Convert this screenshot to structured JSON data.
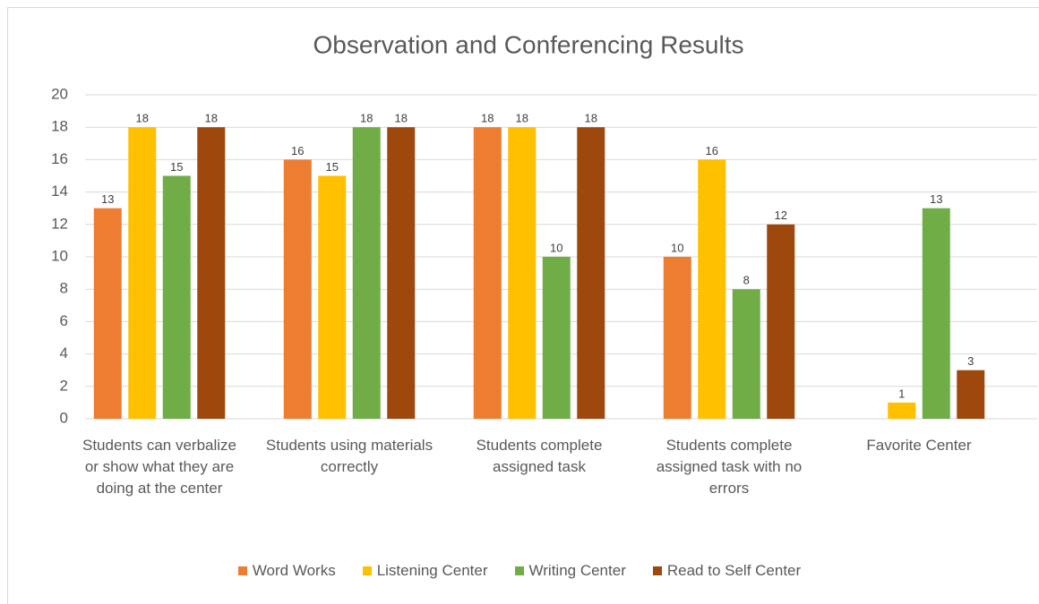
{
  "chart_data": {
    "type": "bar",
    "title": "Observation and Conferencing Results",
    "categories": [
      "Students can verbalize or show what they are doing at the center",
      "Students using materials correctly",
      "Students complete assigned task",
      "Students complete assigned task with no errors",
      "Favorite Center"
    ],
    "series": [
      {
        "name": "Word Works",
        "color": "#ed7d31",
        "values": [
          13,
          16,
          18,
          10,
          null
        ]
      },
      {
        "name": "Listening Center",
        "color": "#ffc000",
        "values": [
          18,
          15,
          18,
          16,
          1
        ]
      },
      {
        "name": "Writing Center",
        "color": "#70ad47",
        "values": [
          15,
          18,
          10,
          8,
          13
        ]
      },
      {
        "name": "Read to Self Center",
        "color": "#9e480e",
        "values": [
          18,
          18,
          18,
          12,
          3
        ]
      }
    ],
    "ylim": [
      0,
      20
    ],
    "yticks": [
      0,
      2,
      4,
      6,
      8,
      10,
      12,
      14,
      16,
      18,
      20
    ],
    "grid": true,
    "legend": "bottom"
  }
}
